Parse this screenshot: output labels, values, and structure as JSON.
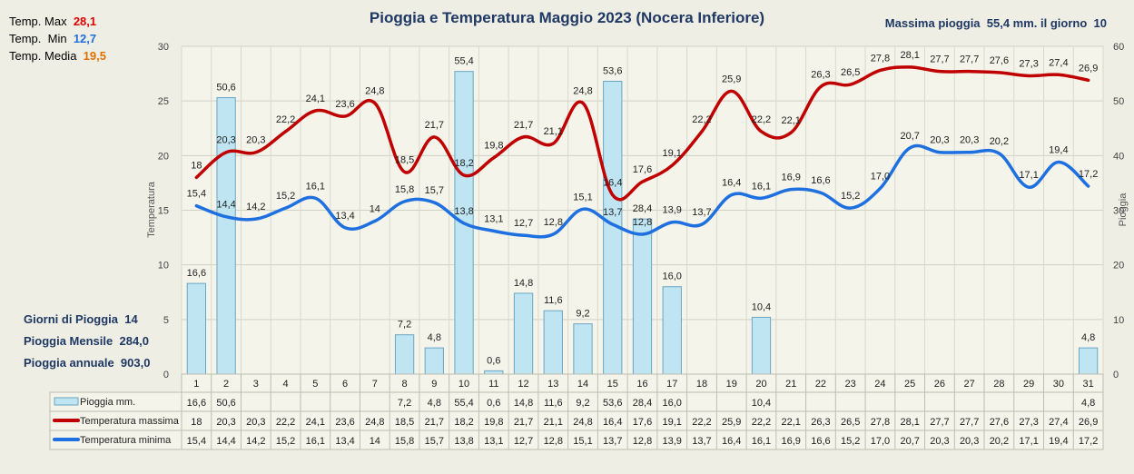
{
  "header": {
    "title": "Pioggia e Temperatura Maggio 2023 (Nocera Inferiore)",
    "max_rain_label": "Massima pioggia",
    "max_rain_value": "55,4 mm. il giorno",
    "max_rain_day": "10"
  },
  "temps": {
    "max_label": "Temp. Max",
    "max_value": "28,1",
    "min_label": "Temp.  Min",
    "min_value": "12,7",
    "avg_label": "Temp. Media",
    "avg_value": "19,5"
  },
  "rain_stats": {
    "days_label": "Giorni di Pioggia",
    "days_value": "14",
    "monthly_label": "Pioggia Mensile",
    "monthly_value": "284,0",
    "annual_label": "Pioggia annuale",
    "annual_value": "903,0"
  },
  "colors": {
    "max_line": "#c00000",
    "min_line": "#1e6fe0",
    "bar_fill": "#bfe4f2",
    "bar_stroke": "#6aa6c4",
    "title": "#1f3864",
    "max_text": "#e00000",
    "min_text": "#1e6fe0",
    "avg_text": "#e07000"
  },
  "chart_data": {
    "type": "bar",
    "categories": [
      "1",
      "2",
      "3",
      "4",
      "5",
      "6",
      "7",
      "8",
      "9",
      "10",
      "11",
      "12",
      "13",
      "14",
      "15",
      "16",
      "17",
      "18",
      "19",
      "20",
      "21",
      "22",
      "23",
      "24",
      "25",
      "26",
      "27",
      "28",
      "29",
      "30",
      "31"
    ],
    "y_left_label": "Temperatura",
    "y_right_label": "Pioggia",
    "ylim_left": [
      0,
      30
    ],
    "ylim_right": [
      0,
      60
    ],
    "y_left_ticks": [
      "0",
      "5",
      "10",
      "15",
      "20",
      "25",
      "30"
    ],
    "y_right_ticks": [
      "0",
      "10",
      "20",
      "30",
      "40",
      "50",
      "60"
    ],
    "grid": true,
    "series": [
      {
        "name": "Pioggia mm.",
        "kind": "bar",
        "axis": "right",
        "values": [
          16.6,
          50.6,
          null,
          null,
          null,
          null,
          null,
          7.2,
          4.8,
          55.4,
          0.6,
          14.8,
          11.6,
          9.2,
          53.6,
          28.4,
          16.0,
          null,
          null,
          10.4,
          null,
          null,
          null,
          null,
          null,
          null,
          null,
          null,
          null,
          null,
          4.8
        ],
        "labels": [
          "16,6",
          "50,6",
          "",
          "",
          "",
          "",
          "",
          "7,2",
          "4,8",
          "55,4",
          "0,6",
          "14,8",
          "11,6",
          "9,2",
          "53,6",
          "28,4",
          "16,0",
          "",
          "",
          "10,4",
          "",
          "",
          "",
          "",
          "",
          "",
          "",
          "",
          "",
          "",
          "4,8"
        ]
      },
      {
        "name": "Temperatura massima",
        "kind": "line",
        "axis": "left",
        "values": [
          18,
          20.3,
          20.3,
          22.2,
          24.1,
          23.6,
          24.8,
          18.5,
          21.7,
          18.2,
          19.8,
          21.7,
          21.1,
          24.8,
          16.4,
          17.6,
          19.1,
          22.2,
          25.9,
          22.2,
          22.1,
          26.3,
          26.5,
          27.8,
          28.1,
          27.7,
          27.7,
          27.6,
          27.3,
          27.4,
          26.9
        ],
        "labels": [
          "18",
          "20,3",
          "20,3",
          "22,2",
          "24,1",
          "23,6",
          "24,8",
          "18,5",
          "21,7",
          "18,2",
          "19,8",
          "21,7",
          "21,1",
          "24,8",
          "16,4",
          "17,6",
          "19,1",
          "22,2",
          "25,9",
          "22,2",
          "22,1",
          "26,3",
          "26,5",
          "27,8",
          "28,1",
          "27,7",
          "27,7",
          "27,6",
          "27,3",
          "27,4",
          "26,9"
        ]
      },
      {
        "name": "Temperatura minima",
        "kind": "line",
        "axis": "left",
        "values": [
          15.4,
          14.4,
          14.2,
          15.2,
          16.1,
          13.4,
          14,
          15.8,
          15.7,
          13.8,
          13.1,
          12.7,
          12.8,
          15.1,
          13.7,
          12.8,
          13.9,
          13.7,
          16.4,
          16.1,
          16.9,
          16.6,
          15.2,
          17.0,
          20.7,
          20.3,
          20.3,
          20.2,
          17.1,
          19.4,
          17.2
        ],
        "labels": [
          "15,4",
          "14,4",
          "14,2",
          "15,2",
          "16,1",
          "13,4",
          "14",
          "15,8",
          "15,7",
          "13,8",
          "13,1",
          "12,7",
          "12,8",
          "15,1",
          "13,7",
          "12,8",
          "13,9",
          "13,7",
          "16,4",
          "16,1",
          "16,9",
          "16,6",
          "15,2",
          "17,0",
          "20,7",
          "20,3",
          "20,3",
          "20,2",
          "17,1",
          "19,4",
          "17,2"
        ]
      }
    ]
  }
}
